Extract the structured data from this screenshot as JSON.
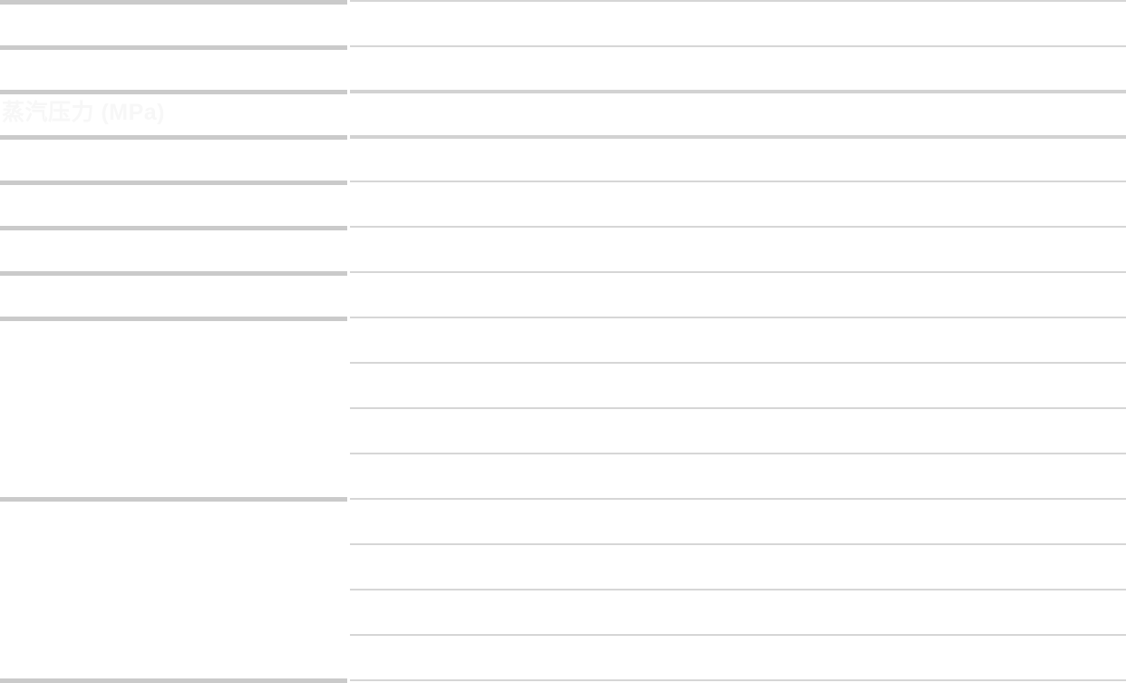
{
  "page": {
    "background_color": "#ffffff"
  },
  "table": {
    "section_title": "蒸汽压力 (MPa)",
    "section_title_color": "#f7f7f7",
    "left_divider_color": "#cacaca",
    "right_divider_color": "#d6d6d6",
    "right_divider_strong_color": "#d2d2d2"
  }
}
